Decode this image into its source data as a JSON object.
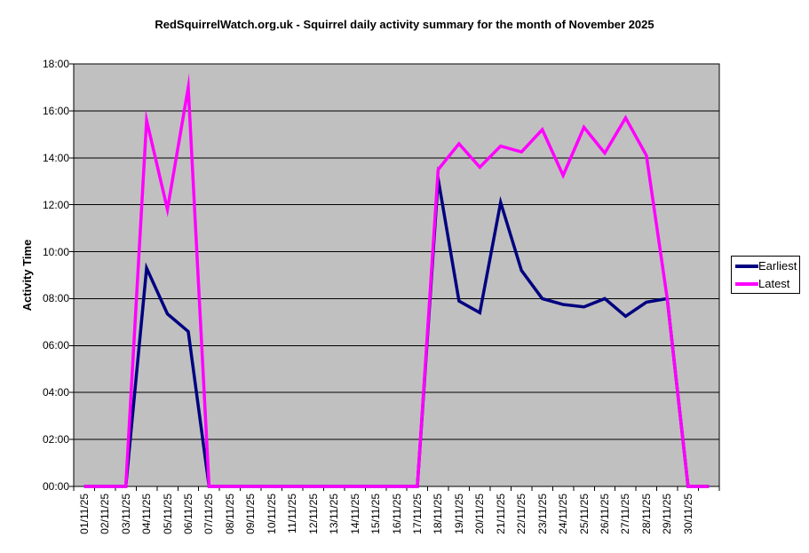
{
  "chart_data": {
    "type": "line",
    "title": "RedSquirrelWatch.org.uk - Squirrel daily activity summary for the month of November 2025",
    "xlabel": "",
    "ylabel": "Activity Time",
    "ylim": [
      0,
      18
    ],
    "ytick_step_hours": 2,
    "ytick_labels": [
      "00:00",
      "02:00",
      "04:00",
      "06:00",
      "08:00",
      "10:00",
      "12:00",
      "14:00",
      "16:00",
      "18:00"
    ],
    "grid": "horizontal",
    "plot_bg_color": "#C0C0C0",
    "gridline_color": "#000000",
    "legend_position": "right",
    "categories": [
      "01/11/25",
      "02/11/25",
      "03/11/25",
      "04/11/25",
      "05/11/25",
      "06/11/25",
      "07/11/25",
      "08/11/25",
      "09/11/25",
      "10/11/25",
      "11/11/25",
      "12/11/25",
      "13/11/25",
      "14/11/25",
      "15/11/25",
      "16/11/25",
      "17/11/25",
      "18/11/25",
      "19/11/25",
      "20/11/25",
      "21/11/25",
      "22/11/25",
      "23/11/25",
      "24/11/25",
      "25/11/25",
      "26/11/25",
      "27/11/25",
      "28/11/25",
      "29/11/25",
      "30/11/25",
      ""
    ],
    "series": [
      {
        "name": "Earliest",
        "color": "#000080",
        "values": [
          0,
          0,
          0,
          9.3,
          7.35,
          6.6,
          0,
          0,
          0,
          0,
          0,
          0,
          0,
          0,
          0,
          0,
          0,
          13.1,
          7.9,
          7.4,
          12.1,
          9.2,
          8.0,
          7.75,
          7.65,
          8.0,
          7.25,
          7.85,
          8.0,
          0,
          0
        ]
      },
      {
        "name": "Latest",
        "color": "#FF00FF",
        "values": [
          0,
          0,
          0,
          15.6,
          11.8,
          17.0,
          0,
          0,
          0,
          0,
          0,
          0,
          0,
          0,
          0,
          0,
          0,
          13.5,
          14.6,
          13.6,
          14.5,
          14.25,
          15.2,
          13.25,
          15.3,
          14.2,
          15.7,
          14.1,
          8.0,
          0,
          0
        ]
      }
    ]
  }
}
